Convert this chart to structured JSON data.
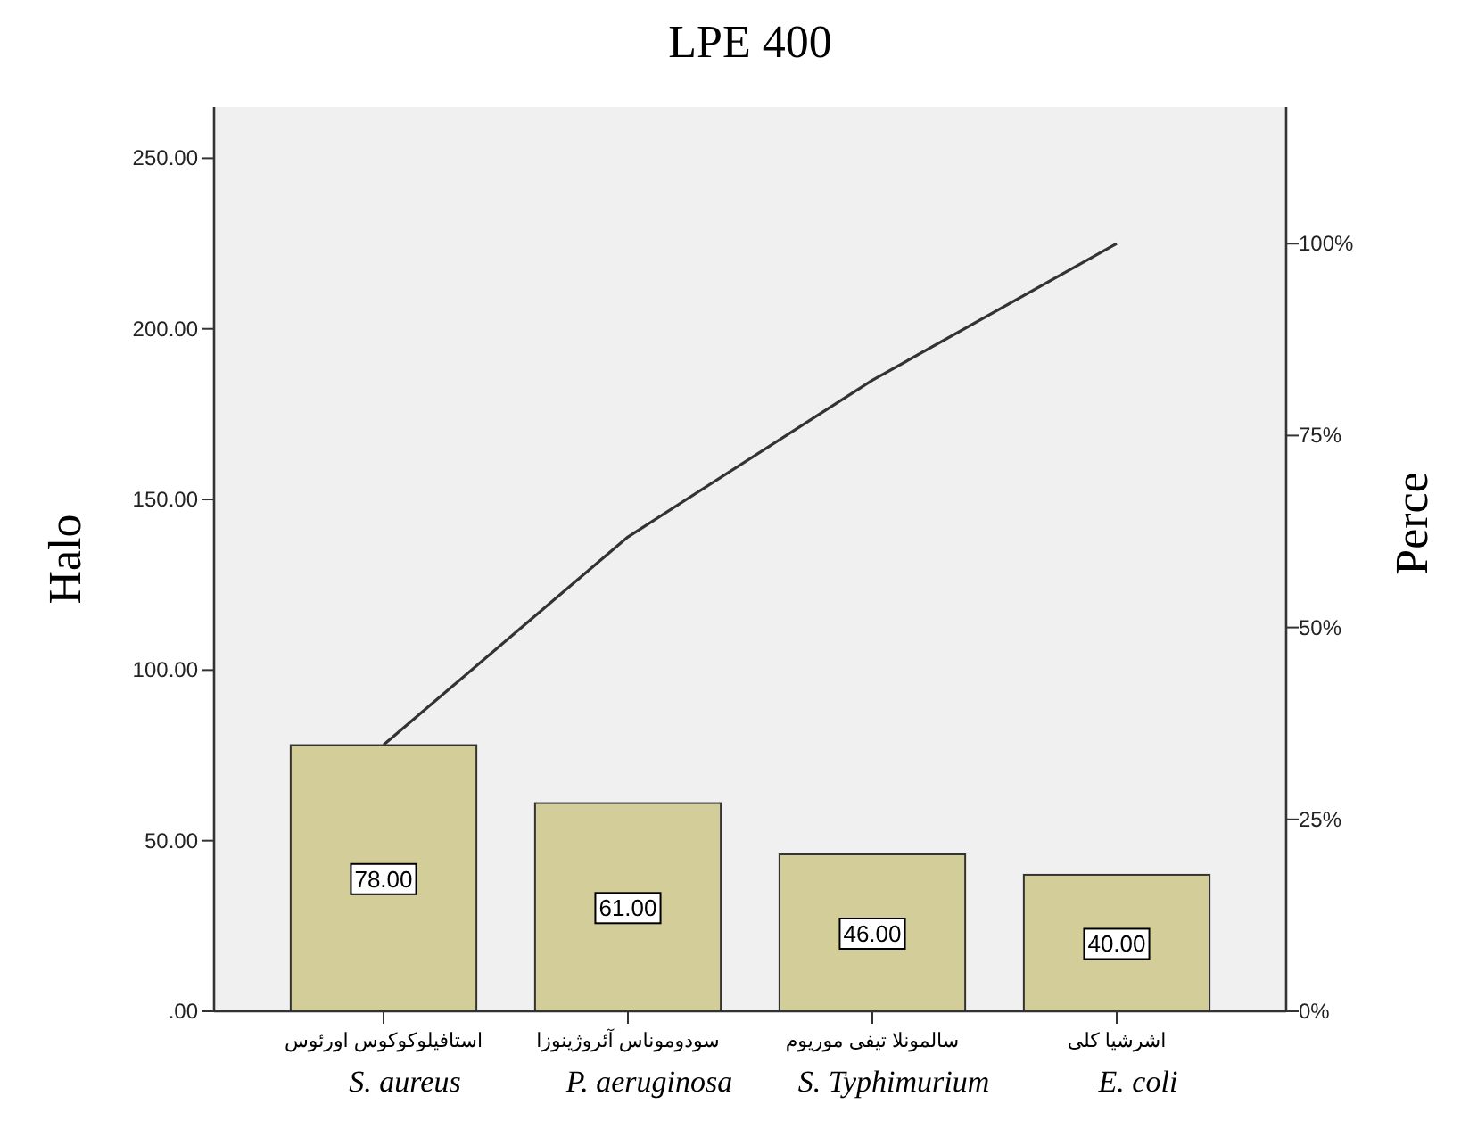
{
  "chart_data": {
    "type": "bar",
    "title": "LPE 400",
    "ylabel": "Halo",
    "y2label": "Perce",
    "categories": [
      "استافیلوکوکوس اورئوس",
      "سودوموناس آئروژینوزا",
      "سالمونلا تیفی موریوم",
      "اشرشیا کلی"
    ],
    "series": [
      {
        "color": "#d3ce99",
        "values": [
          78,
          61,
          46,
          40
        ],
        "value_labels": [
          "78.00",
          "61.00",
          "46.00",
          "40.00"
        ]
      },
      {
        "type": "line",
        "axis": "y2",
        "color": "#333333",
        "values": [
          34.7,
          61.8,
          82.2,
          100
        ]
      }
    ],
    "ylim": [
      0,
      265
    ],
    "yticks": [
      {
        "value": 0,
        "label": ".00"
      },
      {
        "value": 50,
        "label": "50.00"
      },
      {
        "value": 100,
        "label": "100.00"
      },
      {
        "value": 150,
        "label": "150.00"
      },
      {
        "value": 200,
        "label": "200.00"
      },
      {
        "value": 250,
        "label": "250.00"
      }
    ],
    "y2lim": [
      0,
      117.8
    ],
    "y2ticks": [
      {
        "value": 0,
        "label": "0%"
      },
      {
        "value": 25,
        "label": "25%"
      },
      {
        "value": 50,
        "label": "50%"
      },
      {
        "value": 75,
        "label": "75%"
      },
      {
        "value": 100,
        "label": "100%"
      }
    ],
    "annotations": [
      "S. aureus",
      "P. aeruginosa",
      "S. Typhimurium",
      "E. coli"
    ]
  }
}
